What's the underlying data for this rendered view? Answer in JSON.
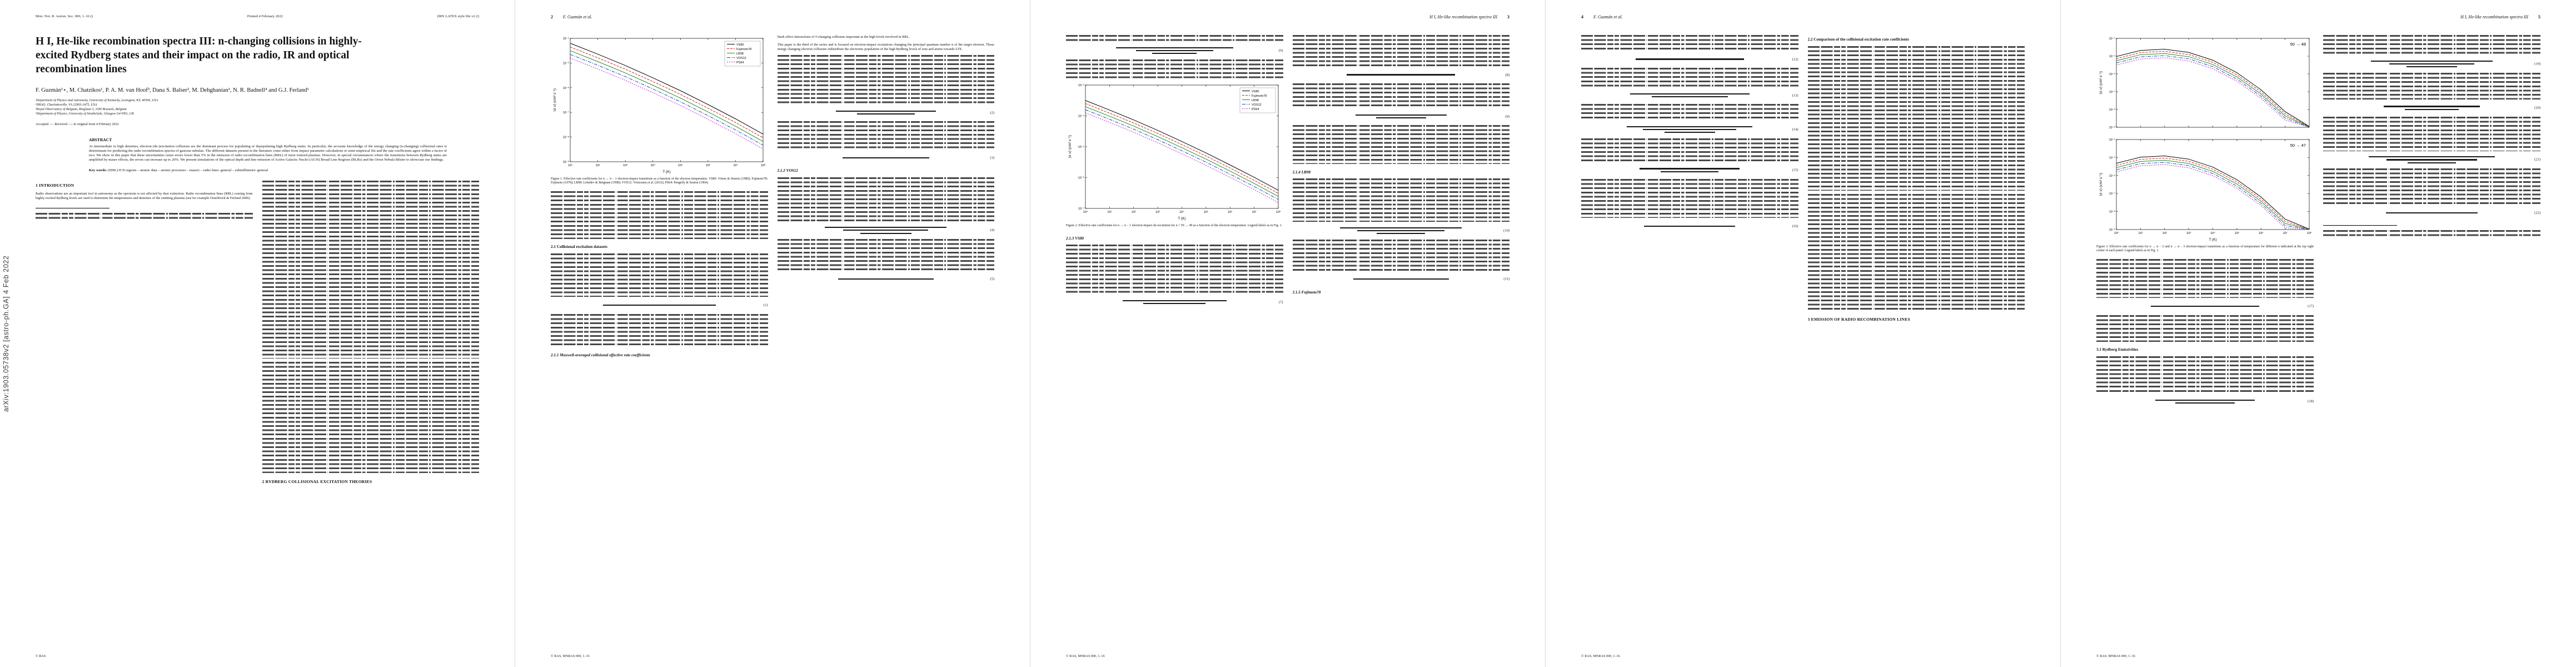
{
  "meta": {
    "arxiv_sidebar": "arXiv:1903.05738v2 [astro-ph.GA] 4 Feb 2022",
    "footer_first": "© RAS",
    "footer_running": "© RAS, MNRAS 000, 1–16"
  },
  "page1": {
    "journal_left": "Mon. Not. R. Astron. Soc. 000, 1–16 ()",
    "journal_center": "Printed 4 February 2022",
    "journal_right": "(MN LATEX style file v2.2)",
    "title": "H I, He-like recombination spectra III: n-changing collisions in highly-excited Rydberg states and their impact on the radio, IR and optical recombination lines",
    "authors": "F. Guzmán¹⋆, M. Chatzikos¹, P. A. M. van Hoof³, Dana S. Balser², M. Dehghanian¹, N. R. Badnell⁴ and G.J. Ferland¹",
    "affiliations": [
      "¹Department of Physics and Astronomy, University of Kentucky, Lexington, KY, 40506, USA",
      "²NRAO, Charlottesville, VA 22903-2475, USA",
      "³Royal Observatory of Belgium, Ringlaan 3, 1180 Brussels, Belgium",
      "⁴Department of Physics, University of Strathclyde, Glasgow G4 0NG, UK"
    ],
    "dateline": "Accepted —. Received —; in original form 4 February 2022",
    "abstract_label": "ABSTRACT",
    "abstract_text": "At intermediate to high densities, electron (de-)excitation collisions are the dominant process for populating or depopulating high Rydberg states. In particular, the accurate knowledge of the energy changing (n-changing) collisional rates is determinant for predicting the radio recombination spectra of gaseous nebulae. The different datasets present in the literature come either from impact parameter calculations or semi-empirical fits and the rate coefficients agree within a factor of two. We show in this paper that these uncertainties cause errors lower than 5% in the emission of radio recombination lines (RRL) of most ionized plasmas. However, in special circumstances where the transitions between Rydberg states are amplified by maser effects, the errors can increase up to 20%. We present simulations of the optical depth and line emission of Active Galactic Nuclei (AGN) Broad Line Regions (BLRs) and the Orion Nebula Blister to showcase our findings.",
    "keywords_label": "Key words:",
    "keywords_text": "(ISM:) H II regions – atomic data – atomic processes – masers – radio lines: general – submillimetre: general",
    "sec1": "1 INTRODUCTION",
    "intro_open": "Radio observations are an important tool in astronomy as the spectrum is not affected by dust extinction. Radio recombination lines (RRL) coming from highly excited Rydberg levels are used to determine the temperatures and densities of the emitting plasmas (see for example Osterbrock & Ferland 2006).",
    "sec2": "2 RYDBERG COLLISIONAL EXCITATION THEORIES"
  },
  "page2": {
    "page_num": "2",
    "running_title": "F. Guzmán et al.",
    "open_1": "Stark effect interactions of ℓ-changing collisions important at the high levels involved in RRL.",
    "open_2": "This paper is the third of the series and is focused on electron-impact excitations changing the principal quantum number n of the target electron. These energy changing electron collisions redistribute the electronic population of the high Rydberg levels of ions and atoms towards LTE.",
    "sec21": "2.1 Collisional excitation datasets",
    "sec211": "2.1.1 Maxwell-averaged collisional effective rate coefficients",
    "sec212": "2.1.2 VOS12",
    "fig1_caption": "Figure 1. Effective rate coefficients for n → n − 1 electron-impact transitions as a function of the electron temperature. VS80: Vriens & Smeets (1980); Fujimoto78: Fujimoto (1978); LB98: Lebedev & Beigman (1998); VOS12: Vrinceanu et al. (2012); PS64: Pengelly & Seaton (1964).",
    "eqs": [
      "(1)",
      "(2)",
      "(3)",
      "(4)",
      "(5)"
    ]
  },
  "page3": {
    "page_num": "3",
    "running_title": "H I, He-like recombination spectra III",
    "sec213": "2.1.3 VS80",
    "sec214": "2.1.4 LB98",
    "sec215": "2.1.5 Fujimoto78",
    "fig2_caption": "Figure 2. Effective rate coefficients for n → n − 1 electron-impact de-excitation for n = 50 → 49 as a function of the electron temperature. Legend labels as in Fig. 1.",
    "eqs": [
      "(6)",
      "(7)",
      "(8)",
      "(9)",
      "(10)",
      "(11)"
    ]
  },
  "page4": {
    "page_num": "4",
    "running_title": "F. Guzmán et al.",
    "sec22": "2.2 Comparison of the collisional excitation rate coefficients",
    "sec3": "3 EMISSION OF RADIO RECOMBINATION LINES",
    "eqs": [
      "(12)",
      "(13)",
      "(14)",
      "(15)",
      "(16)"
    ]
  },
  "page5": {
    "page_num": "5",
    "running_title": "H I, He-like recombination spectra III",
    "sec31": "3.1 Rydberg Emissivities",
    "fig3_caption": "Figure 3. Effective rate coefficients for n → n − 2 and n → n − 3 electron-impact transitions as a function of temperature for different n indicated at the top right corner of each panel. Legend labels as in Fig. 1.",
    "eqs": [
      "(17)",
      "(18)",
      "(19)",
      "(20)",
      "(21)",
      "(22)"
    ]
  },
  "chart_data": [
    {
      "id": "fig1",
      "type": "line",
      "xlabel": "T (K)",
      "ylabel": "⟨σ v⟩ (cm³ s⁻¹)",
      "xrange": [
        1,
        8
      ],
      "yrange": [
        -9,
        -4
      ],
      "xtick_every": 1,
      "ytick_every": 1,
      "legend": true,
      "x": [
        1,
        2,
        3,
        4,
        5,
        6,
        7,
        8
      ],
      "colors": [
        "#000000",
        "#d02020",
        "#209020",
        "#2040c0",
        "#b030b0"
      ],
      "dashes": [
        "",
        "4,2",
        "",
        "6,2,1.5,2",
        "2,2"
      ],
      "series": [
        {
          "name": "VS80",
          "logy": [
            -4.2,
            -4.64,
            -5.1,
            -5.6,
            -6.12,
            -6.68,
            -7.26,
            -7.88
          ]
        },
        {
          "name": "Fujimoto78",
          "logy": [
            -4.35,
            -4.79,
            -5.25,
            -5.75,
            -6.27,
            -6.83,
            -7.41,
            -8.03
          ]
        },
        {
          "name": "LB98",
          "logy": [
            -4.5,
            -4.94,
            -5.4,
            -5.9,
            -6.42,
            -6.98,
            -7.56,
            -8.18
          ]
        },
        {
          "name": "VOS12",
          "logy": [
            -4.65,
            -5.09,
            -5.55,
            -6.05,
            -6.57,
            -7.13,
            -7.71,
            -8.33
          ]
        },
        {
          "name": "PS64",
          "logy": [
            -4.8,
            -5.24,
            -5.7,
            -6.2,
            -6.72,
            -7.28,
            -7.86,
            -8.48
          ]
        }
      ]
    },
    {
      "id": "fig2",
      "type": "line",
      "xlabel": "T (K)",
      "ylabel": "⟨σ v⟩ (cm³ s⁻¹)",
      "xrange": [
        0,
        8
      ],
      "yrange": [
        -7,
        -3
      ],
      "xtick_every": 1,
      "ytick_every": 1,
      "legend": true,
      "x": [
        0,
        1,
        2,
        3,
        4,
        5,
        6,
        7,
        8
      ],
      "colors": [
        "#000000",
        "#d02020",
        "#209020",
        "#2040c0",
        "#b030b0"
      ],
      "dashes": [
        "",
        "4,2",
        "",
        "6,2,1.5,2",
        "2,2"
      ],
      "series": [
        {
          "name": "VS80",
          "logy": [
            -3.5,
            -3.81,
            -4.13,
            -4.47,
            -4.83,
            -5.2,
            -5.59,
            -5.99,
            -6.41
          ]
        },
        {
          "name": "Fujimoto78",
          "logy": [
            -3.6,
            -3.91,
            -4.23,
            -4.57,
            -4.93,
            -5.3,
            -5.69,
            -6.09,
            -6.51
          ]
        },
        {
          "name": "LB98",
          "logy": [
            -3.7,
            -4.01,
            -4.33,
            -4.67,
            -5.03,
            -5.4,
            -5.79,
            -6.19,
            -6.61
          ]
        },
        {
          "name": "VOS12",
          "logy": [
            -3.8,
            -4.11,
            -4.43,
            -4.77,
            -5.13,
            -5.5,
            -5.89,
            -6.29,
            -6.71
          ]
        },
        {
          "name": "PS64",
          "logy": [
            -3.9,
            -4.21,
            -4.53,
            -4.87,
            -5.23,
            -5.6,
            -5.99,
            -6.39,
            -6.81
          ]
        }
      ]
    },
    {
      "id": "fig3a",
      "type": "line",
      "xlabel": "",
      "ylabel": "⟨σ v⟩ (cm³ s⁻¹)",
      "xrange": [
        0,
        8
      ],
      "yrange": [
        -9,
        -4
      ],
      "xtick_every": 1,
      "ytick_every": 1,
      "xticklabels": false,
      "legend": false,
      "panel_label": "50 → 48",
      "x": [
        0,
        1,
        2,
        3,
        4,
        5,
        6,
        7,
        8
      ],
      "colors": [
        "#000000",
        "#d02020",
        "#209020",
        "#2040c0",
        "#b030b0"
      ],
      "dashes": [
        "",
        "4,2",
        "",
        "6,2,1.5,2",
        "2,2"
      ],
      "series": [
        {
          "name": "VS80",
          "logy": [
            -5.02,
            -4.68,
            -4.61,
            -4.79,
            -5.23,
            -5.93,
            -6.89,
            -8.12,
            -8.95
          ]
        },
        {
          "name": "Fujimoto78",
          "logy": [
            -5.14,
            -4.8,
            -4.73,
            -4.91,
            -5.35,
            -6.05,
            -7.01,
            -8.24,
            -8.97
          ]
        },
        {
          "name": "LB98",
          "logy": [
            -5.26,
            -4.92,
            -4.85,
            -5.03,
            -5.47,
            -6.17,
            -7.13,
            -8.36,
            -8.98
          ]
        },
        {
          "name": "VOS12",
          "logy": [
            -5.38,
            -5.04,
            -4.97,
            -5.15,
            -5.59,
            -6.29,
            -7.25,
            -8.48,
            -8.99
          ]
        },
        {
          "name": "PS64",
          "logy": [
            -5.5,
            -5.16,
            -5.09,
            -5.27,
            -5.71,
            -6.41,
            -7.37,
            -8.6,
            -8.99
          ]
        }
      ]
    },
    {
      "id": "fig3b",
      "type": "line",
      "xlabel": "T (K)",
      "ylabel": "⟨σ v⟩ (cm³ s⁻¹)",
      "xrange": [
        0,
        8
      ],
      "yrange": [
        -9,
        -4
      ],
      "xtick_every": 1,
      "ytick_every": 1,
      "legend": false,
      "panel_label": "50 → 47",
      "x": [
        0,
        1,
        2,
        3,
        4,
        5,
        6,
        7,
        8
      ],
      "colors": [
        "#000000",
        "#d02020",
        "#209020",
        "#2040c0",
        "#b030b0"
      ],
      "dashes": [
        "",
        "4,2",
        "",
        "6,2,1.5,2",
        "2,2"
      ],
      "series": [
        {
          "name": "VS80",
          "logy": [
            -5.32,
            -4.98,
            -4.91,
            -5.09,
            -5.53,
            -6.23,
            -7.19,
            -8.42,
            -8.97
          ]
        },
        {
          "name": "Fujimoto78",
          "logy": [
            -5.44,
            -5.1,
            -5.03,
            -5.21,
            -5.65,
            -6.35,
            -7.31,
            -8.54,
            -8.98
          ]
        },
        {
          "name": "LB98",
          "logy": [
            -5.56,
            -5.22,
            -5.15,
            -5.33,
            -5.77,
            -6.47,
            -7.43,
            -8.66,
            -8.99
          ]
        },
        {
          "name": "VOS12",
          "logy": [
            -5.68,
            -5.34,
            -5.27,
            -5.45,
            -5.89,
            -6.59,
            -7.55,
            -8.78,
            -8.99
          ]
        },
        {
          "name": "PS64",
          "logy": [
            -5.8,
            -5.46,
            -5.39,
            -5.57,
            -6.01,
            -6.71,
            -7.67,
            -8.9,
            -8.99
          ]
        }
      ]
    }
  ]
}
